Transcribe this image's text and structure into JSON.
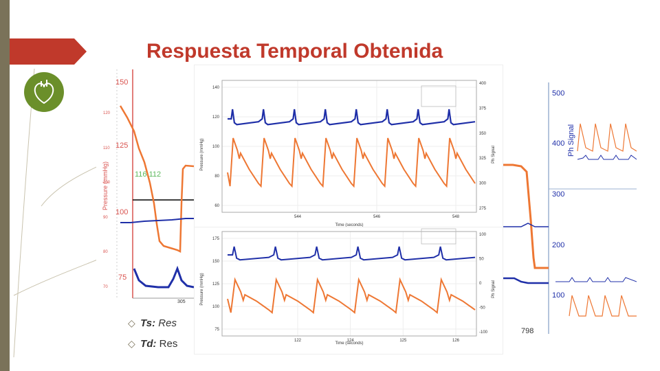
{
  "slide": {
    "title": "Respuesta Temporal Obtenida",
    "bullets": [
      {
        "term": "Ts:",
        "text": " Res"
      },
      {
        "term": "Td:",
        "text": " Res"
      }
    ],
    "bullet_icon": "diamond-bullet-icon",
    "accent_color": "#c0392b",
    "sidebar_color": "#7a7259",
    "logo_icon": "heart-logo-icon"
  },
  "chart_data": [
    {
      "type": "line",
      "id": "left-panel",
      "ylabel_outer": "Pressure (mmHg)",
      "yticks_outer": [
        "150",
        "125",
        "100",
        "75"
      ],
      "yticks_inner": [
        "120",
        "110",
        "100",
        "90",
        "80",
        "70"
      ],
      "xtick": "305",
      "annotation": "116 112",
      "series": [
        {
          "name": "pressure"
        },
        {
          "name": "signal"
        }
      ]
    },
    {
      "type": "line",
      "id": "main-top",
      "xlabel": "Time (seconds)",
      "ylabel_left": "Pressure (mmHg)",
      "ylabel_right": "Ph Signal",
      "yticks_left": [
        "140",
        "120",
        "100",
        "80",
        "60"
      ],
      "yticks_right": [
        "400",
        "375",
        "350",
        "325",
        "300",
        "275"
      ],
      "xticks": [
        "544",
        "546",
        "548"
      ],
      "ylim_left": [
        50,
        145
      ],
      "series": [
        {
          "name": "pressure",
          "color": "#ee7733"
        },
        {
          "name": "signal",
          "color": "#1f2fa8"
        }
      ]
    },
    {
      "type": "line",
      "id": "main-bottom",
      "xlabel": "Time (seconds)",
      "ylabel_left": "Pressure (mmHg)",
      "ylabel_right": "Ph Signal",
      "yticks_left": [
        "175",
        "150",
        "125",
        "100",
        "75"
      ],
      "yticks_right": [
        "100",
        "50",
        "0",
        "-50",
        "-100"
      ],
      "xticks": [
        "122",
        "124",
        "125",
        "126"
      ],
      "ylim_left": [
        65,
        180
      ],
      "series": [
        {
          "name": "pressure",
          "color": "#ee7733"
        },
        {
          "name": "signal",
          "color": "#1f2fa8"
        }
      ]
    },
    {
      "type": "line",
      "id": "right-panel",
      "ylabel_right": "Ph Signal",
      "yticks": [
        "500",
        "400",
        "300",
        "200",
        "100"
      ],
      "xtick": "798"
    }
  ]
}
